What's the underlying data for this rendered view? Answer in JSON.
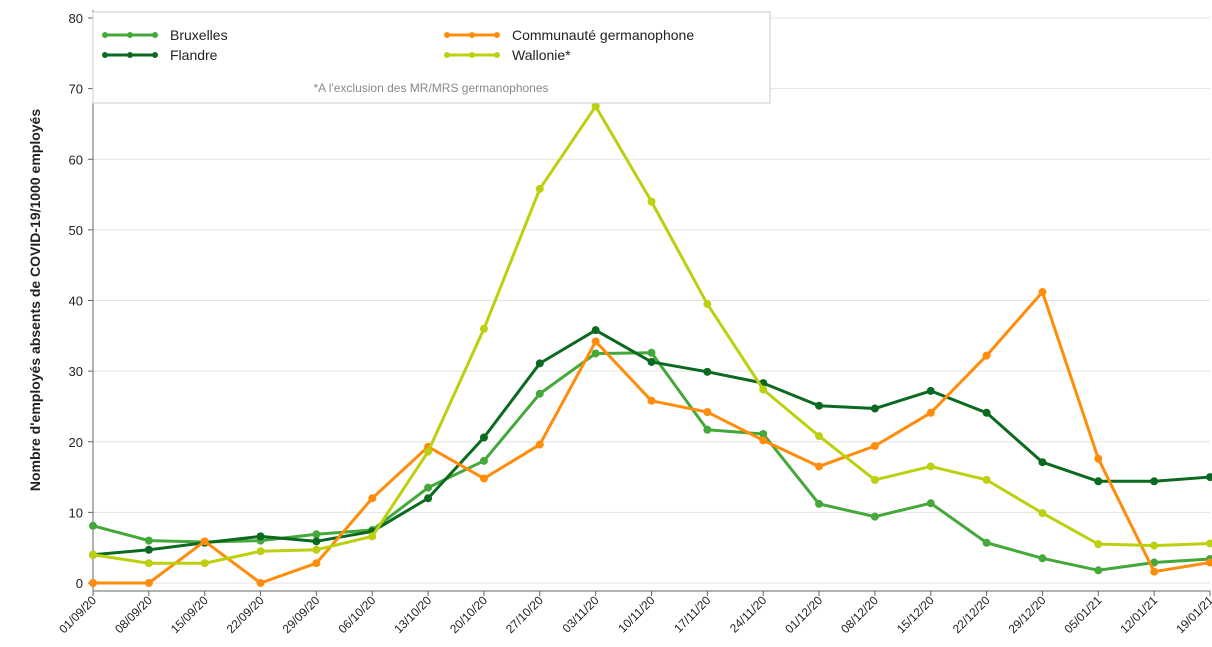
{
  "chart_data": {
    "type": "line",
    "y_label": "Nombre d'employés absents de COVID-19/1000 employés",
    "note": "*A l'exclusion des MR/MRS germanophones",
    "categories": [
      "01/09/20",
      "08/09/20",
      "15/09/20",
      "22/09/20",
      "29/09/20",
      "06/10/20",
      "13/10/20",
      "20/10/20",
      "27/10/20",
      "03/11/20",
      "10/11/20",
      "17/11/20",
      "24/11/20",
      "01/12/20",
      "08/12/20",
      "15/12/20",
      "22/12/20",
      "29/12/20",
      "05/01/21",
      "12/01/21",
      "19/01/21"
    ],
    "series": [
      {
        "name": "Bruxelles",
        "color": "#45a83a",
        "values": [
          8.1,
          6.0,
          5.8,
          6.0,
          6.9,
          7.5,
          13.5,
          17.3,
          26.8,
          32.5,
          32.6,
          21.7,
          21.1,
          11.2,
          9.4,
          11.3,
          5.7,
          3.5,
          1.8,
          2.9,
          3.4
        ]
      },
      {
        "name": "Flandre",
        "color": "#0b6a1f",
        "values": [
          4.0,
          4.7,
          5.7,
          6.6,
          5.9,
          7.3,
          12.0,
          20.6,
          31.1,
          35.8,
          31.3,
          29.9,
          28.3,
          25.1,
          24.7,
          27.2,
          24.1,
          17.1,
          14.4,
          14.4,
          15.0
        ]
      },
      {
        "name": "Communauté germanophone",
        "color": "#ff8c0a",
        "values": [
          0,
          0,
          5.9,
          0,
          2.8,
          12.0,
          19.3,
          14.8,
          19.6,
          34.2,
          25.8,
          24.2,
          20.2,
          16.5,
          19.4,
          24.1,
          32.2,
          41.2,
          17.6,
          1.6,
          2.9
        ]
      },
      {
        "name": "Wallonie*",
        "color": "#bcd00f",
        "values": [
          4.0,
          2.8,
          2.8,
          4.5,
          4.7,
          6.6,
          18.6,
          36.0,
          55.8,
          67.5,
          54.0,
          39.5,
          27.4,
          20.8,
          14.6,
          16.5,
          14.6,
          9.9,
          5.5,
          5.3,
          5.6
        ]
      }
    ],
    "ylim": [
      0,
      80
    ],
    "yticks": [
      0,
      10,
      20,
      30,
      40,
      50,
      60,
      70,
      80
    ],
    "grid": true
  }
}
